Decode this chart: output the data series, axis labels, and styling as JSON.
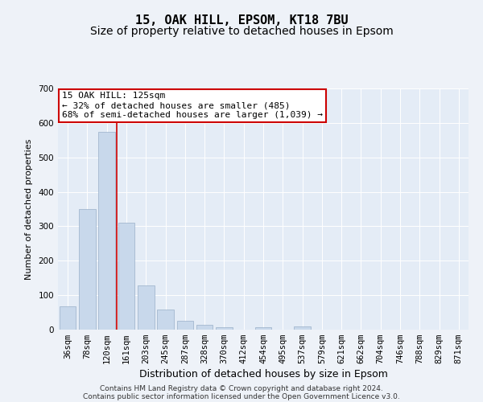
{
  "title": "15, OAK HILL, EPSOM, KT18 7BU",
  "subtitle": "Size of property relative to detached houses in Epsom",
  "xlabel": "Distribution of detached houses by size in Epsom",
  "ylabel": "Number of detached properties",
  "categories": [
    "36sqm",
    "78sqm",
    "120sqm",
    "161sqm",
    "203sqm",
    "245sqm",
    "287sqm",
    "328sqm",
    "370sqm",
    "412sqm",
    "454sqm",
    "495sqm",
    "537sqm",
    "579sqm",
    "621sqm",
    "662sqm",
    "704sqm",
    "746sqm",
    "788sqm",
    "829sqm",
    "871sqm"
  ],
  "values": [
    68,
    350,
    575,
    310,
    128,
    58,
    25,
    14,
    7,
    0,
    8,
    0,
    10,
    0,
    0,
    0,
    0,
    0,
    0,
    0,
    0
  ],
  "bar_color": "#c8d8eb",
  "bar_edge_color": "#9ab0c8",
  "vline_x_bar_index": 2,
  "vline_color": "#cc0000",
  "annotation_text": "15 OAK HILL: 125sqm\n← 32% of detached houses are smaller (485)\n68% of semi-detached houses are larger (1,039) →",
  "annotation_box_facecolor": "#ffffff",
  "annotation_box_edgecolor": "#cc0000",
  "ylim": [
    0,
    700
  ],
  "yticks": [
    0,
    100,
    200,
    300,
    400,
    500,
    600,
    700
  ],
  "bg_color": "#eef2f8",
  "plot_bg_color": "#e4ecf6",
  "grid_color": "#ffffff",
  "footer_line1": "Contains HM Land Registry data © Crown copyright and database right 2024.",
  "footer_line2": "Contains public sector information licensed under the Open Government Licence v3.0.",
  "title_fontsize": 11,
  "subtitle_fontsize": 10,
  "xlabel_fontsize": 9,
  "ylabel_fontsize": 8,
  "tick_fontsize": 7.5,
  "annot_fontsize": 8,
  "footer_fontsize": 6.5
}
